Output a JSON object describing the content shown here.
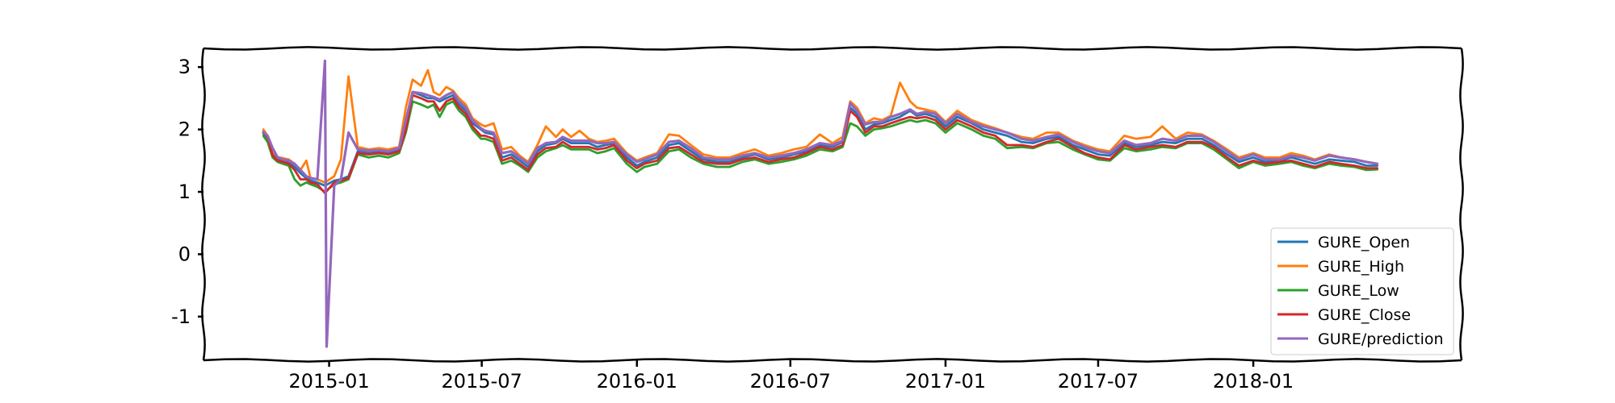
{
  "chart_data": {
    "type": "line",
    "title": "",
    "xlabel": "",
    "ylabel": "",
    "x_axis": {
      "type": "date",
      "range": [
        "2014-08-05",
        "2018-09-05"
      ],
      "tick_labels": [
        "2015-01",
        "2015-07",
        "2016-01",
        "2016-07",
        "2017-01",
        "2017-07",
        "2018-01"
      ],
      "tick_dates": [
        "2015-01-01",
        "2015-07-01",
        "2016-01-01",
        "2016-07-01",
        "2017-01-01",
        "2017-07-01",
        "2018-01-01"
      ]
    },
    "y_axis": {
      "range": [
        -1.7,
        3.3
      ],
      "ticks": [
        3,
        2,
        1,
        0,
        -1
      ],
      "tick_labels": [
        "3",
        "2",
        "1",
        "0",
        "-1"
      ]
    },
    "grid": false,
    "legend_position": "lower-right",
    "dates": [
      "2014-10-15",
      "2014-10-20",
      "2014-10-26",
      "2014-11-01",
      "2014-11-07",
      "2014-11-14",
      "2014-11-21",
      "2014-11-28",
      "2014-12-05",
      "2014-12-10",
      "2014-12-18",
      "2014-12-27",
      "2015-01-07",
      "2015-01-15",
      "2015-01-24",
      "2015-02-04",
      "2015-02-17",
      "2015-03-01",
      "2015-03-12",
      "2015-03-25",
      "2015-04-02",
      "2015-04-10",
      "2015-04-20",
      "2015-04-28",
      "2015-05-05",
      "2015-05-12",
      "2015-05-20",
      "2015-05-28",
      "2015-06-04",
      "2015-06-12",
      "2015-06-20",
      "2015-06-30",
      "2015-07-05",
      "2015-07-15",
      "2015-07-25",
      "2015-08-05",
      "2015-08-15",
      "2015-08-25",
      "2015-09-05",
      "2015-09-15",
      "2015-09-27",
      "2015-10-05",
      "2015-10-15",
      "2015-10-25",
      "2015-11-05",
      "2015-11-15",
      "2015-11-25",
      "2015-12-05",
      "2015-12-20",
      "2016-01-01",
      "2016-01-10",
      "2016-01-25",
      "2016-02-08",
      "2016-02-20",
      "2016-03-05",
      "2016-03-20",
      "2016-04-05",
      "2016-04-20",
      "2016-05-05",
      "2016-05-20",
      "2016-06-05",
      "2016-06-20",
      "2016-07-05",
      "2016-07-20",
      "2016-08-05",
      "2016-08-20",
      "2016-09-01",
      "2016-09-10",
      "2016-09-18",
      "2016-09-28",
      "2016-10-08",
      "2016-10-18",
      "2016-10-28",
      "2016-11-08",
      "2016-11-20",
      "2016-11-28",
      "2016-12-08",
      "2016-12-20",
      "2017-01-01",
      "2017-01-15",
      "2017-02-01",
      "2017-02-15",
      "2017-03-01",
      "2017-03-15",
      "2017-04-01",
      "2017-04-15",
      "2017-05-01",
      "2017-05-15",
      "2017-06-01",
      "2017-06-15",
      "2017-07-01",
      "2017-07-15",
      "2017-08-01",
      "2017-08-15",
      "2017-09-01",
      "2017-09-15",
      "2017-10-01",
      "2017-10-15",
      "2017-11-01",
      "2017-11-15",
      "2017-12-01",
      "2017-12-15",
      "2018-01-01",
      "2018-01-15",
      "2018-02-01",
      "2018-02-15",
      "2018-03-01",
      "2018-03-15",
      "2018-04-01",
      "2018-04-15",
      "2018-05-01",
      "2018-05-15",
      "2018-05-28"
    ],
    "series": [
      {
        "name": "GURE_Open",
        "color": "#1f77b4",
        "values": [
          1.94,
          1.85,
          1.6,
          1.52,
          1.5,
          1.47,
          1.4,
          1.3,
          1.22,
          1.18,
          1.15,
          1.1,
          1.18,
          1.2,
          1.25,
          1.65,
          1.62,
          1.64,
          1.62,
          1.68,
          2.05,
          2.6,
          2.55,
          2.5,
          2.5,
          2.45,
          2.5,
          2.55,
          2.4,
          2.3,
          2.1,
          2.0,
          1.95,
          1.92,
          1.55,
          1.6,
          1.5,
          1.4,
          1.65,
          1.75,
          1.78,
          1.85,
          1.78,
          1.78,
          1.78,
          1.72,
          1.75,
          1.78,
          1.55,
          1.42,
          1.48,
          1.55,
          1.75,
          1.78,
          1.65,
          1.52,
          1.48,
          1.48,
          1.55,
          1.6,
          1.52,
          1.55,
          1.6,
          1.65,
          1.75,
          1.72,
          1.8,
          2.35,
          2.25,
          2.0,
          2.08,
          2.1,
          2.15,
          2.2,
          2.3,
          2.22,
          2.25,
          2.2,
          2.05,
          2.2,
          2.1,
          2.0,
          1.95,
          1.9,
          1.8,
          1.78,
          1.85,
          1.88,
          1.75,
          1.68,
          1.6,
          1.58,
          1.78,
          1.72,
          1.75,
          1.8,
          1.78,
          1.85,
          1.85,
          1.75,
          1.6,
          1.48,
          1.55,
          1.48,
          1.5,
          1.55,
          1.5,
          1.45,
          1.52,
          1.5,
          1.48,
          1.42,
          1.42
        ]
      },
      {
        "name": "GURE_High",
        "color": "#ff7f0e",
        "values": [
          2.0,
          1.9,
          1.65,
          1.56,
          1.54,
          1.52,
          1.45,
          1.35,
          1.5,
          1.22,
          1.2,
          1.15,
          1.25,
          1.52,
          2.85,
          1.72,
          1.68,
          1.7,
          1.68,
          1.72,
          2.35,
          2.8,
          2.7,
          2.95,
          2.6,
          2.55,
          2.68,
          2.62,
          2.5,
          2.4,
          2.18,
          2.08,
          2.05,
          2.1,
          1.68,
          1.72,
          1.58,
          1.48,
          1.75,
          2.05,
          1.88,
          2.0,
          1.88,
          1.98,
          1.85,
          1.8,
          1.82,
          1.85,
          1.62,
          1.5,
          1.55,
          1.62,
          1.92,
          1.9,
          1.75,
          1.6,
          1.55,
          1.55,
          1.62,
          1.68,
          1.58,
          1.62,
          1.68,
          1.72,
          1.92,
          1.78,
          1.88,
          2.45,
          2.35,
          2.1,
          2.18,
          2.15,
          2.22,
          2.75,
          2.45,
          2.35,
          2.32,
          2.28,
          2.12,
          2.3,
          2.15,
          2.08,
          2.02,
          1.95,
          1.88,
          1.85,
          1.95,
          1.95,
          1.82,
          1.75,
          1.68,
          1.65,
          1.9,
          1.85,
          1.88,
          2.05,
          1.85,
          1.95,
          1.92,
          1.82,
          1.68,
          1.55,
          1.62,
          1.55,
          1.55,
          1.62,
          1.58,
          1.52,
          1.6,
          1.55,
          1.52,
          1.48,
          1.45
        ]
      },
      {
        "name": "GURE_Low",
        "color": "#2ca02c",
        "values": [
          1.9,
          1.8,
          1.55,
          1.48,
          1.45,
          1.42,
          1.2,
          1.1,
          1.15,
          1.12,
          1.08,
          1.0,
          1.12,
          1.15,
          1.2,
          1.6,
          1.55,
          1.58,
          1.55,
          1.62,
          1.95,
          2.45,
          2.4,
          2.35,
          2.4,
          2.2,
          2.4,
          2.45,
          2.3,
          2.2,
          2.0,
          1.85,
          1.85,
          1.8,
          1.45,
          1.5,
          1.42,
          1.32,
          1.55,
          1.65,
          1.7,
          1.75,
          1.68,
          1.68,
          1.68,
          1.62,
          1.65,
          1.7,
          1.45,
          1.32,
          1.4,
          1.45,
          1.65,
          1.68,
          1.55,
          1.45,
          1.4,
          1.4,
          1.48,
          1.52,
          1.45,
          1.48,
          1.52,
          1.58,
          1.68,
          1.65,
          1.72,
          2.1,
          2.05,
          1.9,
          2.0,
          2.02,
          2.05,
          2.1,
          2.15,
          2.12,
          2.15,
          2.1,
          1.95,
          2.1,
          2.0,
          1.9,
          1.85,
          1.7,
          1.72,
          1.7,
          1.78,
          1.8,
          1.68,
          1.6,
          1.52,
          1.5,
          1.7,
          1.65,
          1.68,
          1.72,
          1.7,
          1.78,
          1.78,
          1.68,
          1.52,
          1.38,
          1.48,
          1.42,
          1.45,
          1.48,
          1.42,
          1.38,
          1.45,
          1.42,
          1.4,
          1.35,
          1.36
        ]
      },
      {
        "name": "GURE_Close",
        "color": "#d62728",
        "values": [
          1.95,
          1.88,
          1.58,
          1.5,
          1.48,
          1.45,
          1.35,
          1.2,
          1.2,
          1.15,
          1.12,
          0.98,
          1.15,
          1.18,
          1.22,
          1.62,
          1.6,
          1.62,
          1.6,
          1.65,
          2.0,
          2.55,
          2.5,
          2.45,
          2.45,
          2.3,
          2.45,
          2.5,
          2.35,
          2.25,
          2.05,
          1.9,
          1.9,
          1.85,
          1.5,
          1.55,
          1.45,
          1.35,
          1.6,
          1.7,
          1.72,
          1.8,
          1.72,
          1.72,
          1.72,
          1.68,
          1.7,
          1.75,
          1.5,
          1.38,
          1.45,
          1.5,
          1.7,
          1.72,
          1.6,
          1.48,
          1.45,
          1.45,
          1.52,
          1.55,
          1.48,
          1.52,
          1.55,
          1.62,
          1.72,
          1.68,
          1.75,
          2.3,
          2.2,
          1.95,
          2.05,
          2.05,
          2.1,
          2.15,
          2.2,
          2.18,
          2.2,
          2.15,
          2.0,
          2.15,
          2.05,
          1.95,
          1.9,
          1.75,
          1.75,
          1.72,
          1.8,
          1.85,
          1.72,
          1.62,
          1.55,
          1.52,
          1.75,
          1.68,
          1.72,
          1.75,
          1.72,
          1.8,
          1.8,
          1.72,
          1.55,
          1.42,
          1.5,
          1.45,
          1.48,
          1.5,
          1.45,
          1.4,
          1.48,
          1.45,
          1.42,
          1.38,
          1.38
        ]
      },
      {
        "name": "GURE/prediction",
        "color": "#9467bd",
        "values": [
          1.96,
          1.9,
          1.7,
          1.55,
          1.52,
          1.5,
          1.45,
          1.35,
          1.25,
          1.22,
          1.2,
          3.1,
          1.1,
          1.2,
          1.95,
          1.68,
          1.66,
          1.67,
          1.65,
          1.7,
          2.15,
          2.6,
          2.58,
          2.55,
          2.52,
          2.48,
          2.55,
          2.6,
          2.45,
          2.35,
          2.15,
          2.02,
          1.98,
          1.95,
          1.62,
          1.65,
          1.55,
          1.45,
          1.7,
          1.78,
          1.8,
          1.88,
          1.82,
          1.82,
          1.82,
          1.78,
          1.78,
          1.8,
          1.6,
          1.48,
          1.52,
          1.6,
          1.8,
          1.82,
          1.7,
          1.55,
          1.52,
          1.52,
          1.58,
          1.62,
          1.55,
          1.58,
          1.62,
          1.68,
          1.78,
          1.75,
          1.82,
          2.42,
          2.3,
          2.08,
          2.12,
          2.12,
          2.2,
          2.25,
          2.32,
          2.25,
          2.28,
          2.25,
          2.1,
          2.25,
          2.12,
          2.05,
          2.0,
          1.95,
          1.85,
          1.82,
          1.88,
          1.92,
          1.8,
          1.72,
          1.65,
          1.62,
          1.82,
          1.75,
          1.78,
          1.85,
          1.82,
          1.9,
          1.9,
          1.8,
          1.65,
          1.52,
          1.6,
          1.52,
          1.52,
          1.58,
          1.55,
          1.5,
          1.58,
          1.55,
          1.52,
          1.48,
          1.45
        ],
        "extra_points": [
          {
            "date": "2014-12-29",
            "value": -1.48
          }
        ]
      }
    ]
  }
}
